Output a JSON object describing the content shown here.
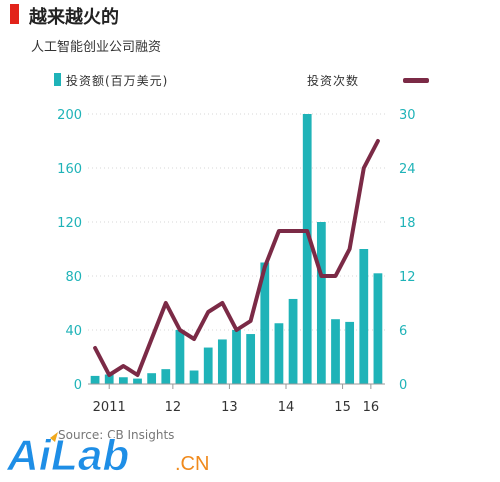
{
  "header": {
    "title": "越来越火的",
    "subtitle": "人工智能创业公司融资"
  },
  "legend": {
    "left_label": "投资额(百万美元)",
    "right_label": "投资次数"
  },
  "source": "Source: CB Insights",
  "watermark": "AiLab.CN",
  "colors": {
    "bars": "#1fb3b8",
    "line": "#7b2a46",
    "accent": "#e2231a",
    "axis": "#1fb3b8"
  },
  "chart_data": {
    "type": "bar",
    "x_tick_labels": [
      "2011",
      "12",
      "13",
      "14",
      "15",
      "16"
    ],
    "y_left": {
      "ticks": [
        0,
        40,
        80,
        120,
        160,
        200
      ],
      "ylim": [
        0,
        200
      ]
    },
    "y_right": {
      "ticks": [
        0,
        6,
        12,
        18,
        24,
        30
      ],
      "ylim": [
        0,
        30
      ]
    },
    "series": [
      {
        "name": "投资额(百万美元)",
        "type": "bar",
        "axis": "left",
        "values": [
          6,
          7,
          5,
          4,
          8,
          11,
          40,
          10,
          27,
          33,
          40,
          37,
          90,
          45,
          63,
          200,
          120,
          48,
          46,
          100,
          82
        ]
      },
      {
        "name": "投资次数",
        "type": "line",
        "axis": "right",
        "values": [
          4,
          1,
          2,
          1,
          5,
          9,
          6,
          5,
          8,
          9,
          6,
          7,
          13,
          17,
          17,
          17,
          12,
          12,
          15,
          24,
          27
        ]
      }
    ]
  }
}
